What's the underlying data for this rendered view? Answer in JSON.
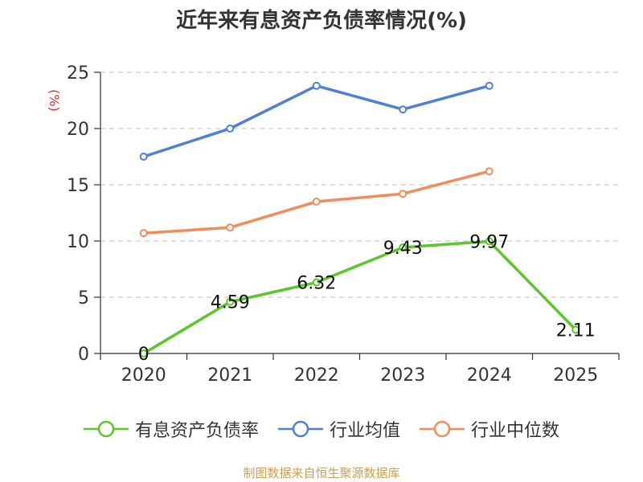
{
  "chart_data": {
    "type": "line",
    "title": "近年来有息资产负债率情况(%)",
    "ylabel": "(%)",
    "xlabel": "",
    "categories": [
      "2020",
      "2021",
      "2022",
      "2023",
      "2024",
      "2025"
    ],
    "ylim": [
      0,
      25
    ],
    "yticks": [
      0,
      5,
      10,
      15,
      20,
      25
    ],
    "grid": true,
    "legend_position": "bottom",
    "series": [
      {
        "name": "有息资产负债率",
        "color": "#5cc62a",
        "values": [
          0,
          4.59,
          6.32,
          9.43,
          9.97,
          2.11
        ],
        "labels": [
          "0",
          "4.59",
          "6.32",
          "9.43",
          "9.97",
          "2.11"
        ]
      },
      {
        "name": "行业均值",
        "color": "#4f7fd6",
        "values": [
          17.5,
          20.0,
          23.8,
          21.7,
          23.8,
          null
        ]
      },
      {
        "name": "行业中位数",
        "color": "#f28c5a",
        "values": [
          10.7,
          11.2,
          13.5,
          14.2,
          16.2,
          null
        ]
      }
    ]
  },
  "footer": {
    "source": "制图数据来自恒生聚源数据库"
  }
}
